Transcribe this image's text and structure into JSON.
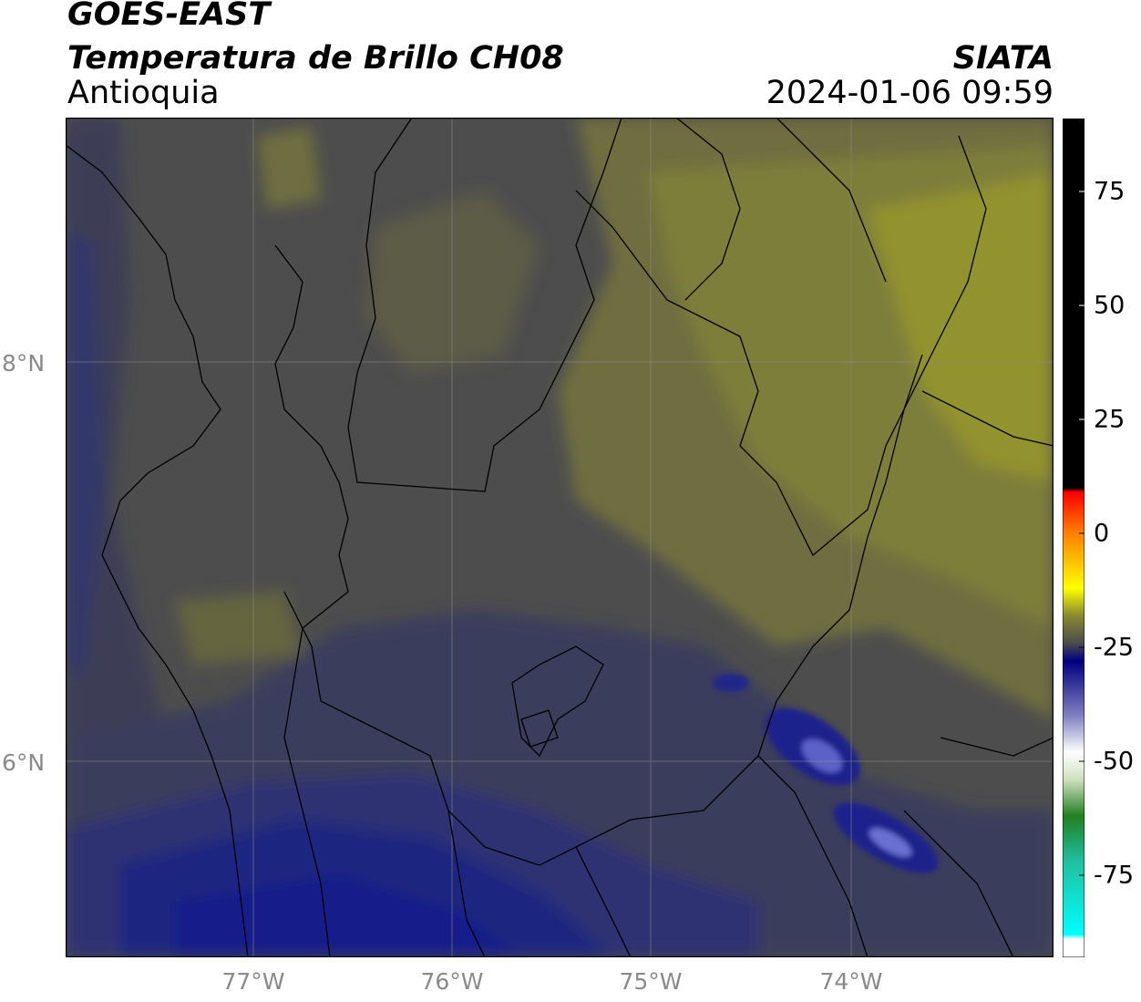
{
  "header": {
    "satellite": "GOES-EAST",
    "product": "Temperatura de Brillo CH08",
    "region": "Antioquia",
    "organization": "SIATA",
    "timestamp": "2024-01-06 09:59"
  },
  "map": {
    "lat_labels": [
      "8°N",
      "6°N"
    ],
    "lon_labels": [
      "77°W",
      "76°W",
      "75°W",
      "74°W"
    ],
    "extent": {
      "lon_min": -77.95,
      "lon_max": -73.0,
      "lat_min": 5.0,
      "lat_max": 9.2
    },
    "palette": {
      "background": "#4c4c4c",
      "warm": "#8f8f33",
      "cold": "#1c2266",
      "coldest": "#000a82"
    }
  },
  "colorbar": {
    "tick_labels": [
      "75",
      "50",
      "25",
      "0",
      "-25",
      "-50",
      "-75"
    ],
    "tick_values": [
      75,
      50,
      25,
      0,
      -25,
      -50,
      -75
    ],
    "range": [
      -93,
      91
    ],
    "stops": [
      {
        "value": 91,
        "color": "#000000"
      },
      {
        "value": 10,
        "color": "#000000"
      },
      {
        "value": 9,
        "color": "#ff0000"
      },
      {
        "value": 0,
        "color": "#ff8000"
      },
      {
        "value": -12,
        "color": "#ffff00"
      },
      {
        "value": -18,
        "color": "#8a8a30"
      },
      {
        "value": -24,
        "color": "#4c4c4c"
      },
      {
        "value": -28,
        "color": "#000080"
      },
      {
        "value": -40,
        "color": "#8080c0"
      },
      {
        "value": -48,
        "color": "#ffffff"
      },
      {
        "value": -54,
        "color": "#d0e0c0"
      },
      {
        "value": -62,
        "color": "#208020"
      },
      {
        "value": -72,
        "color": "#20c0a0"
      },
      {
        "value": -88,
        "color": "#00ffff"
      },
      {
        "value": -89,
        "color": "#ffffff"
      },
      {
        "value": -93,
        "color": "#ffffff"
      }
    ]
  }
}
